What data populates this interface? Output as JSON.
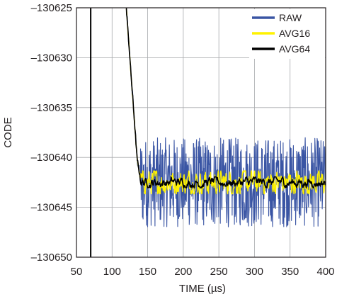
{
  "chart_data": {
    "type": "line",
    "title": "",
    "xlabel": "TIME (µs)",
    "ylabel": "CODE",
    "xlim": [
      50,
      400
    ],
    "ylim": [
      -130650,
      -130625
    ],
    "xticks": [
      50,
      100,
      150,
      200,
      250,
      300,
      350,
      400
    ],
    "yticks": [
      -130625,
      -130630,
      -130635,
      -130640,
      -130645,
      -130650
    ],
    "ytick_labels": [
      "–130625",
      "–130630",
      "–130635",
      "–130640",
      "–130645",
      "–130650"
    ],
    "grid": true,
    "legend_position": "top-right",
    "step_x": 70,
    "settle": {
      "x": [
        120,
        125,
        130,
        135,
        140
      ],
      "y": [
        -130625,
        -130630,
        -130635,
        -130640,
        -130642.3
      ]
    },
    "steady_state_mean": -130642.5,
    "series": [
      {
        "name": "RAW",
        "color": "#3a55a4",
        "steady_range": [
          -130647,
          -130638
        ]
      },
      {
        "name": "AVG16",
        "color": "#fff200",
        "steady_range": [
          -130643.6,
          -130641.3
        ]
      },
      {
        "name": "AVG64",
        "color": "#000000",
        "steady_range": [
          -130643.0,
          -130641.9
        ]
      }
    ]
  }
}
